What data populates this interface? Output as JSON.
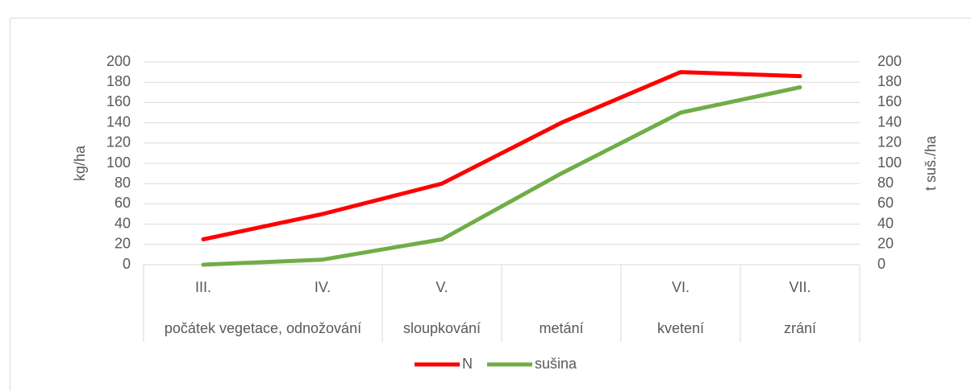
{
  "chart_data": {
    "type": "line",
    "categories": [
      "III.",
      "IV.",
      "V.",
      null,
      "VI.",
      "VII."
    ],
    "category_groups": [
      {
        "label": "počátek vegetace, odnožování",
        "span": 2
      },
      {
        "label": "sloupkování",
        "span": 1
      },
      {
        "label": "metání",
        "span": 1
      },
      {
        "label": "kvetení",
        "span": 1
      },
      {
        "label": "zrání",
        "span": 1
      }
    ],
    "series": [
      {
        "name": "N",
        "color": "#ff0000",
        "values": [
          25,
          50,
          80,
          140,
          190,
          186
        ]
      },
      {
        "name": "sušina",
        "color": "#70ad47",
        "axis": "y2",
        "values": [
          0,
          5,
          25,
          90,
          150,
          175
        ]
      }
    ],
    "ylabel": "kg/ha",
    "y2label": "t suš./ha",
    "ylim": [
      0,
      200
    ],
    "yticks": [
      0,
      20,
      40,
      60,
      80,
      100,
      120,
      140,
      160,
      180,
      200
    ],
    "y2lim": [
      0,
      200
    ],
    "y2ticks": [
      0,
      20,
      40,
      60,
      80,
      100,
      120,
      140,
      160,
      180,
      200
    ],
    "grid": true,
    "legend": "bottom"
  }
}
